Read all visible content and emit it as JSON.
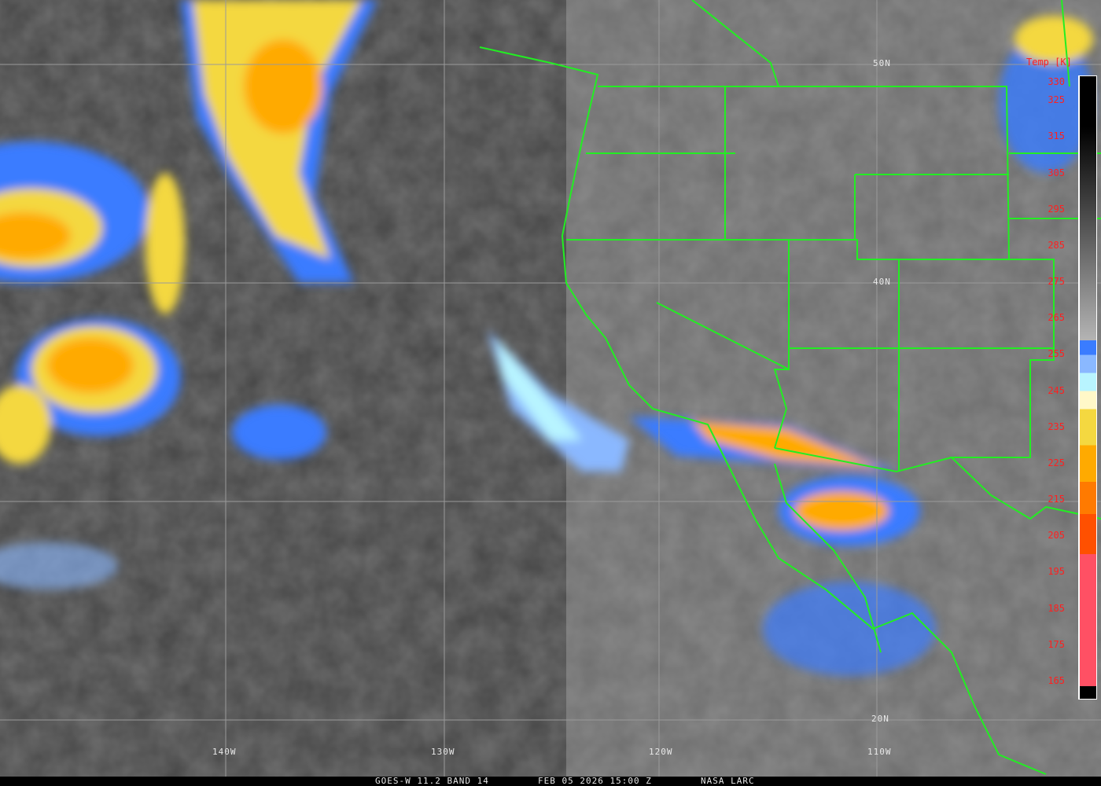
{
  "caption": {
    "satellite": "GOES-W 11.2 BAND 14",
    "datetime": "FEB 05 2026 15:00 Z",
    "source": "NASA LARC"
  },
  "grid": {
    "lat_labels": [
      "50N",
      "40N",
      "20N"
    ],
    "lon_labels": [
      "140W",
      "130W",
      "120W",
      "110W"
    ]
  },
  "colorbar": {
    "title": "Temp [K]",
    "ticks": [
      "330",
      "325",
      "315",
      "305",
      "295",
      "285",
      "275",
      "265",
      "255",
      "245",
      "235",
      "225",
      "215",
      "205",
      "195",
      "185",
      "175",
      "165"
    ],
    "range_k": [
      160,
      332
    ],
    "colors": {
      "warm_gray_top": "#000000",
      "warm_gray_bottom": "#b4b4b4",
      "blue": "#3a7cff",
      "light_blue": "#8ab8ff",
      "cyan": "#b8f4ff",
      "pale_yellow": "#fff8c8",
      "yellow": "#f4d840",
      "orange": "#ffaa00",
      "dark_orange": "#ff7a00",
      "red_orange": "#ff5000",
      "pink": "#ff5064",
      "coldest": "#000000"
    }
  },
  "overlay_colors": {
    "borders": "#22ee22",
    "graticule": "#9a9a9a",
    "tick_labels": "#ff2020"
  }
}
